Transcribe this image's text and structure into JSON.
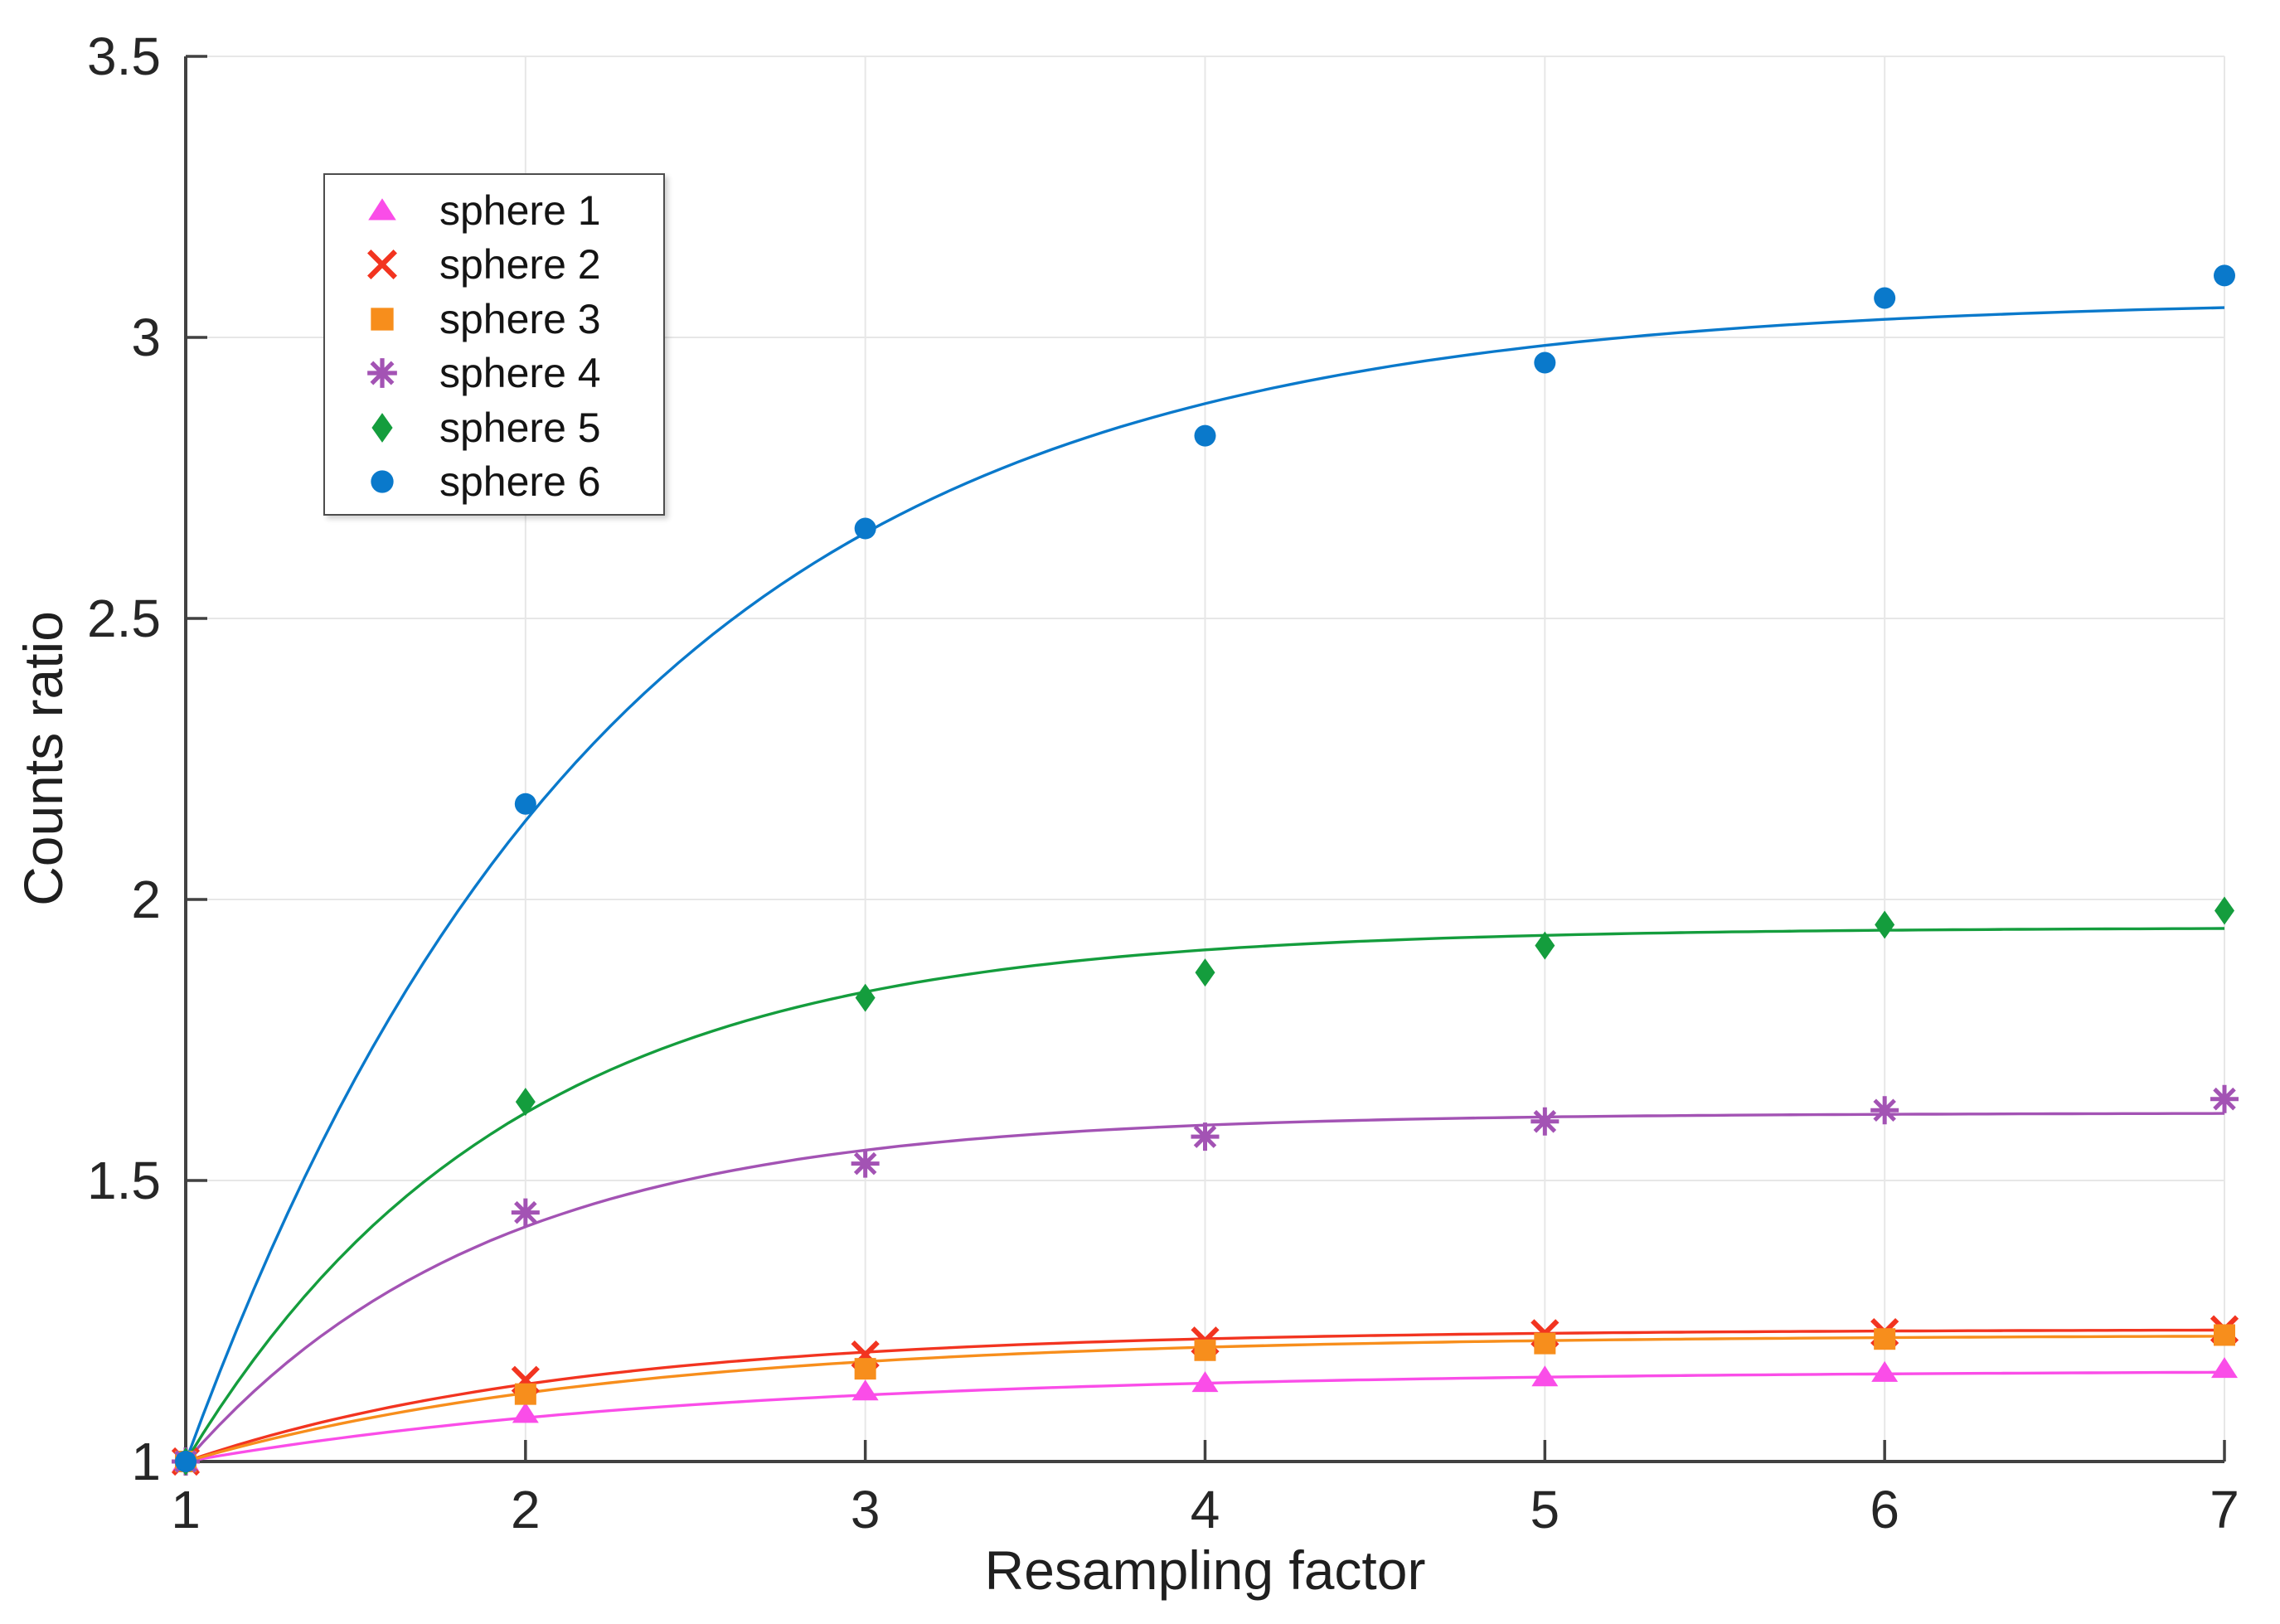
{
  "chart_data": {
    "type": "scatter",
    "title": "",
    "xlabel": "Resampling factor",
    "ylabel": "Counts ratio",
    "xlim": [
      1,
      7
    ],
    "ylim": [
      1,
      3.5
    ],
    "xticks": [
      1,
      2,
      3,
      4,
      5,
      6,
      7
    ],
    "yticks": [
      1,
      1.5,
      2,
      2.5,
      3,
      3.5
    ],
    "grid": true,
    "legend_position": "upper-left-inside",
    "x": [
      1,
      2,
      3,
      4,
      5,
      6,
      7
    ],
    "series": [
      {
        "name": "sphere 1",
        "marker": "triangle",
        "color": "#FA4DE8",
        "values": [
          1,
          1.085,
          1.125,
          1.14,
          1.15,
          1.158,
          1.165
        ],
        "fit": {
          "model": "y = 1 + A*(1-exp(-k*(x-1)))",
          "A": 0.162,
          "k": 0.655
        }
      },
      {
        "name": "sphere 2",
        "marker": "x",
        "color": "#F23420",
        "values": [
          1,
          1.145,
          1.19,
          1.215,
          1.228,
          1.23,
          1.235
        ],
        "fit": {
          "model": "y = 1 + A*(1-exp(-k*(x-1)))",
          "A": 0.235,
          "k": 0.88
        }
      },
      {
        "name": "sphere 3",
        "marker": "square",
        "color": "#F78E1C",
        "values": [
          1,
          1.12,
          1.165,
          1.198,
          1.21,
          1.218,
          1.225
        ],
        "fit": {
          "model": "y = 1 + A*(1-exp(-k*(x-1)))",
          "A": 0.225,
          "k": 0.78
        }
      },
      {
        "name": "sphere 4",
        "marker": "asterisk",
        "color": "#A353B4",
        "values": [
          1,
          1.443,
          1.53,
          1.578,
          1.605,
          1.625,
          1.645
        ],
        "fit": {
          "model": "y = 1 + A*(1-exp(-k*(x-1)))",
          "A": 0.62,
          "k": 1.12
        }
      },
      {
        "name": "sphere 5",
        "marker": "diamond",
        "color": "#149D3D",
        "values": [
          1,
          1.64,
          1.825,
          1.87,
          1.918,
          1.955,
          1.98
        ],
        "fit": {
          "model": "y = 1 + A*(1-exp(-k*(x-1)))",
          "A": 0.95,
          "k": 1.058
        }
      },
      {
        "name": "sphere 6",
        "marker": "circle",
        "color": "#0A79CB",
        "values": [
          1,
          2.17,
          2.66,
          2.825,
          2.955,
          3.07,
          3.11
        ],
        "fit": {
          "model": "y = 1 + A*(1-exp(-k*(x-1)))",
          "A": 2.07,
          "k": 0.8
        }
      }
    ],
    "style": {
      "grid_color": "#E7E7E7",
      "axis_color": "#414141",
      "tick_label_color": "#262626",
      "background": "#FFFFFF"
    }
  }
}
